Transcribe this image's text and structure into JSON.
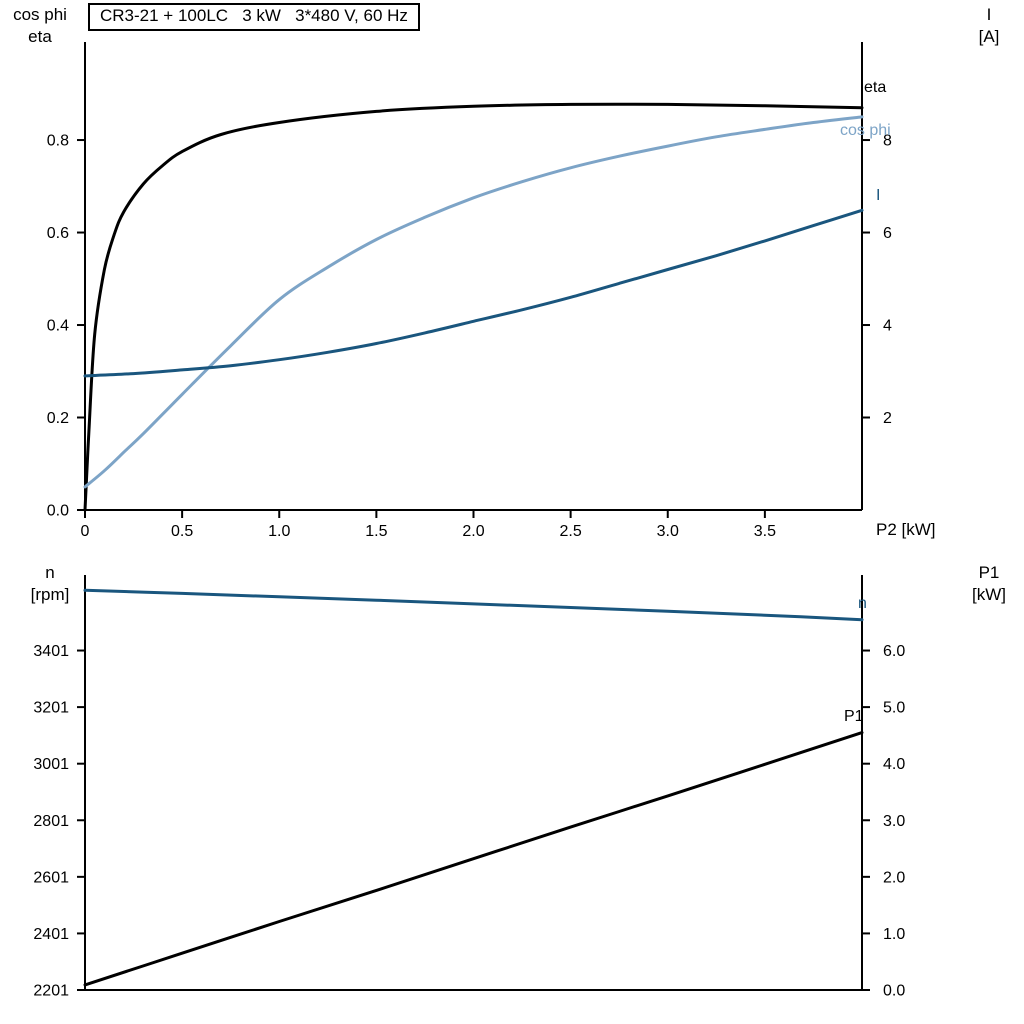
{
  "title_box": "CR3-21 + 100LC   3 kW   3*480 V, 60 Hz",
  "colors": {
    "black": "#000000",
    "dark_blue": "#1a567e",
    "light_blue": "#7da4c7"
  },
  "chart_data": [
    {
      "type": "line",
      "title": "CR3-21 + 100LC   3 kW   3*480 V, 60 Hz",
      "xlabel": "P2 [kW]",
      "grid": false,
      "x_axis": {
        "range": [
          0,
          4.0
        ],
        "ticks": [
          0,
          0.5,
          1.0,
          1.5,
          2.0,
          2.5,
          3.0,
          3.5
        ],
        "tick_labels": [
          "0",
          "0.5",
          "1.0",
          "1.5",
          "2.0",
          "2.5",
          "3.0",
          "3.5"
        ]
      },
      "left_axis": {
        "label_lines": [
          "cos phi",
          "eta"
        ],
        "range": [
          0,
          1.012
        ],
        "ticks": [
          0.0,
          0.2,
          0.4,
          0.6,
          0.8
        ],
        "tick_labels": [
          "0.0",
          "0.2",
          "0.4",
          "0.6",
          "0.8"
        ]
      },
      "right_axis": {
        "label_lines": [
          "I",
          "[A]"
        ],
        "range": [
          0,
          10.12
        ],
        "ticks": [
          2,
          4,
          6,
          8
        ],
        "tick_labels": [
          "2",
          "4",
          "6",
          "8"
        ]
      },
      "series": [
        {
          "name": "eta",
          "axis": "left",
          "color": "black",
          "x": [
            0,
            0.02,
            0.05,
            0.1,
            0.15,
            0.2,
            0.3,
            0.4,
            0.5,
            0.7,
            1.0,
            1.5,
            2.0,
            2.5,
            3.0,
            3.5,
            4.0
          ],
          "y": [
            0,
            0.17,
            0.38,
            0.52,
            0.595,
            0.645,
            0.705,
            0.745,
            0.775,
            0.812,
            0.838,
            0.862,
            0.873,
            0.877,
            0.877,
            0.874,
            0.87
          ]
        },
        {
          "name": "cos phi",
          "axis": "left",
          "color": "light_blue",
          "x": [
            0,
            0.1,
            0.2,
            0.3,
            0.5,
            0.75,
            1.0,
            1.25,
            1.5,
            1.75,
            2.0,
            2.25,
            2.5,
            2.75,
            3.0,
            3.25,
            3.5,
            3.75,
            4.0
          ],
          "y": [
            0.05,
            0.085,
            0.125,
            0.165,
            0.25,
            0.355,
            0.455,
            0.525,
            0.585,
            0.633,
            0.675,
            0.71,
            0.74,
            0.765,
            0.787,
            0.807,
            0.823,
            0.838,
            0.85
          ]
        },
        {
          "name": "I",
          "axis": "right",
          "color": "dark_blue",
          "x": [
            0,
            0.25,
            0.5,
            0.75,
            1.0,
            1.25,
            1.5,
            1.75,
            2.0,
            2.25,
            2.5,
            2.75,
            3.0,
            3.25,
            3.5,
            3.75,
            4.0
          ],
          "y": [
            2.9,
            2.95,
            3.03,
            3.12,
            3.25,
            3.41,
            3.6,
            3.83,
            4.08,
            4.33,
            4.6,
            4.9,
            5.2,
            5.5,
            5.82,
            6.15,
            6.48
          ]
        }
      ]
    },
    {
      "type": "line",
      "title": "",
      "xlabel": "",
      "grid": false,
      "x_axis": {
        "range": [
          0,
          4.0
        ],
        "ticks": [],
        "tick_labels": []
      },
      "left_axis": {
        "label_lines": [
          "n",
          "[rpm]"
        ],
        "range": [
          2201,
          3668
        ],
        "ticks": [
          2201,
          2401,
          2601,
          2801,
          3001,
          3201,
          3401
        ],
        "tick_labels": [
          "2201",
          "2401",
          "2601",
          "2801",
          "3001",
          "3201",
          "3401"
        ]
      },
      "right_axis": {
        "label_lines": [
          "P1",
          "[kW]"
        ],
        "range": [
          0,
          7.335
        ],
        "ticks": [
          0,
          1,
          2,
          3,
          4,
          5,
          6
        ],
        "tick_labels": [
          "0.0",
          "1.0",
          "2.0",
          "3.0",
          "4.0",
          "5.0",
          "6.0"
        ]
      },
      "series": [
        {
          "name": "n",
          "axis": "left",
          "color": "dark_blue",
          "x": [
            0,
            0.5,
            1.0,
            1.5,
            2.0,
            2.5,
            3.0,
            3.5,
            4.0
          ],
          "y": [
            3614,
            3603,
            3591,
            3579,
            3566,
            3553,
            3540,
            3526,
            3510
          ]
        },
        {
          "name": "P1",
          "axis": "right",
          "color": "black",
          "x": [
            0,
            0.5,
            1.0,
            1.5,
            2.0,
            2.5,
            3.0,
            3.5,
            4.0
          ],
          "y": [
            0.09,
            0.65,
            1.21,
            1.76,
            2.32,
            2.88,
            3.43,
            3.99,
            4.55
          ]
        }
      ]
    }
  ]
}
